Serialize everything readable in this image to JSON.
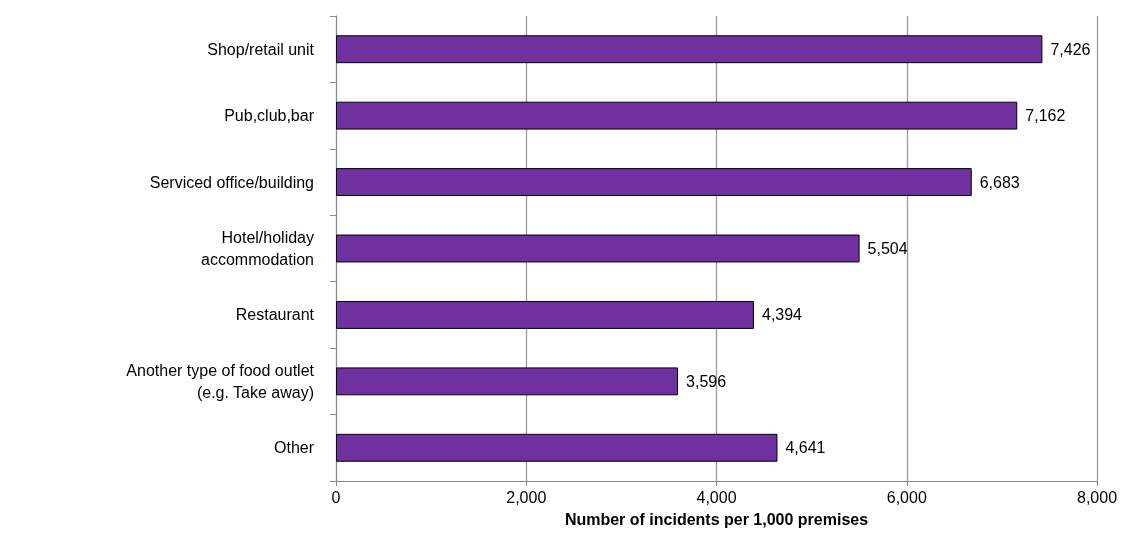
{
  "chart_data": {
    "type": "bar",
    "orientation": "horizontal",
    "xlabel": "Number of incidents per 1,000 premises",
    "categories": [
      "Shop/retail unit",
      "Pub,club,bar",
      "Serviced office/building",
      "Hotel/holiday\naccommodation",
      "Restaurant",
      "Another type of food outlet\n(e.g. Take away)",
      "Other"
    ],
    "values": [
      7426,
      7162,
      6683,
      5504,
      4394,
      3596,
      4641
    ],
    "value_labels": [
      "7,426",
      "7,162",
      "6,683",
      "5,504",
      "4,394",
      "3,596",
      "4,641"
    ],
    "color": "#7030a0",
    "xlim": [
      0,
      8000
    ],
    "xticks": [
      {
        "value": 0,
        "label": "0"
      },
      {
        "value": 2000,
        "label": "2,000"
      },
      {
        "value": 4000,
        "label": "4,000"
      },
      {
        "value": 6000,
        "label": "6,000"
      },
      {
        "value": 8000,
        "label": "8,000"
      }
    ],
    "grid": "x"
  }
}
